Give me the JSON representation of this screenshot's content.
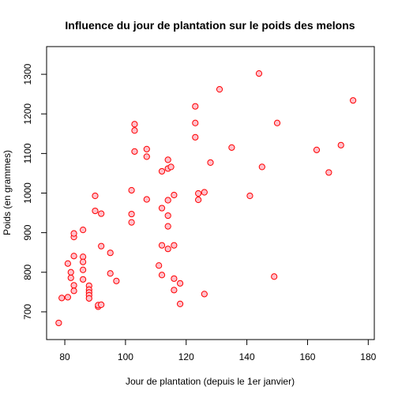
{
  "chart_data": {
    "type": "scatter",
    "title": "Influence du jour de plantation sur le poids des melons",
    "xlabel": "Jour de plantation (depuis le 1er janvier)",
    "ylabel": "Poids (en grammes)",
    "xlim": [
      74,
      182
    ],
    "ylim": [
      630,
      1370
    ],
    "xticks": [
      80,
      100,
      120,
      140,
      160,
      180
    ],
    "yticks": [
      700,
      800,
      900,
      1000,
      1100,
      1200,
      1300
    ],
    "grid": false,
    "marker": {
      "fill": "#ffc0cb",
      "stroke": "#ff0000"
    },
    "points": [
      [
        78,
        672
      ],
      [
        79,
        735
      ],
      [
        81,
        822
      ],
      [
        81,
        737
      ],
      [
        82,
        786
      ],
      [
        82,
        800
      ],
      [
        83,
        889
      ],
      [
        83,
        898
      ],
      [
        83,
        841
      ],
      [
        83,
        767
      ],
      [
        83,
        753
      ],
      [
        86,
        907
      ],
      [
        86,
        839
      ],
      [
        86,
        826
      ],
      [
        86,
        806
      ],
      [
        86,
        782
      ],
      [
        88,
        766
      ],
      [
        88,
        756
      ],
      [
        88,
        749
      ],
      [
        88,
        742
      ],
      [
        88,
        734
      ],
      [
        90,
        993
      ],
      [
        90,
        955
      ],
      [
        91,
        713
      ],
      [
        91,
        717
      ],
      [
        92,
        948
      ],
      [
        92,
        866
      ],
      [
        92,
        718
      ],
      [
        95,
        849
      ],
      [
        95,
        797
      ],
      [
        97,
        778
      ],
      [
        102,
        1007
      ],
      [
        102,
        947
      ],
      [
        102,
        926
      ],
      [
        103,
        1174
      ],
      [
        103,
        1158
      ],
      [
        103,
        1105
      ],
      [
        107,
        1111
      ],
      [
        107,
        1092
      ],
      [
        107,
        984
      ],
      [
        111,
        817
      ],
      [
        112,
        1055
      ],
      [
        112,
        962
      ],
      [
        112,
        868
      ],
      [
        112,
        793
      ],
      [
        114,
        1084
      ],
      [
        114,
        1062
      ],
      [
        114,
        982
      ],
      [
        114,
        943
      ],
      [
        114,
        916
      ],
      [
        114,
        859
      ],
      [
        115,
        1066
      ],
      [
        116,
        995
      ],
      [
        116,
        868
      ],
      [
        116,
        784
      ],
      [
        116,
        755
      ],
      [
        118,
        772
      ],
      [
        118,
        720
      ],
      [
        123,
        1219
      ],
      [
        123,
        1177
      ],
      [
        123,
        1141
      ],
      [
        124,
        999
      ],
      [
        124,
        983
      ],
      [
        126,
        1002
      ],
      [
        126,
        745
      ],
      [
        128,
        1077
      ],
      [
        131,
        1262
      ],
      [
        135,
        1115
      ],
      [
        141,
        993
      ],
      [
        144,
        1302
      ],
      [
        145,
        1066
      ],
      [
        149,
        789
      ],
      [
        150,
        1177
      ],
      [
        163,
        1109
      ],
      [
        167,
        1052
      ],
      [
        171,
        1121
      ],
      [
        175,
        1234
      ]
    ]
  }
}
